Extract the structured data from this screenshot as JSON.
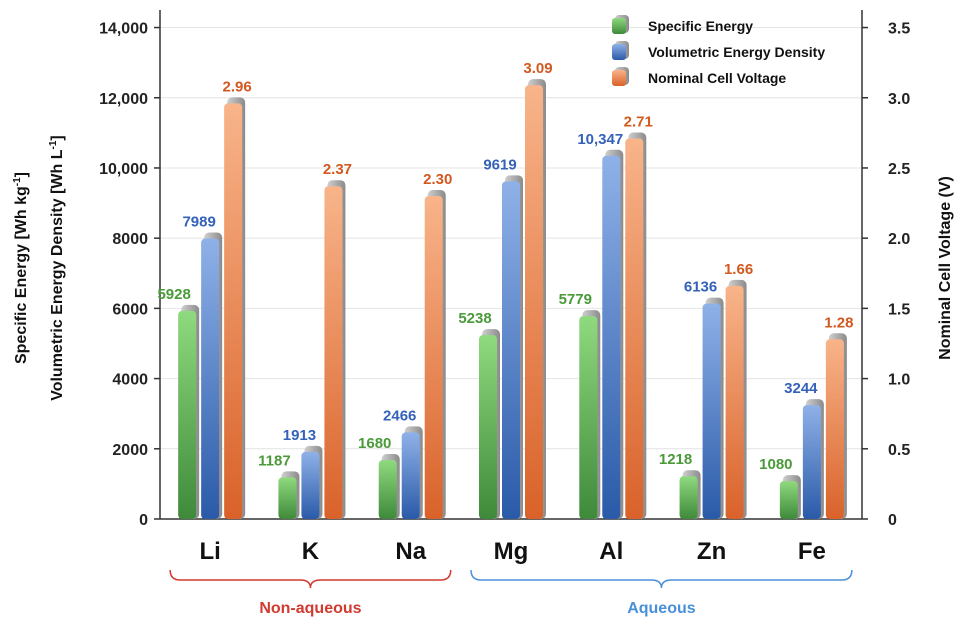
{
  "chart_data": {
    "type": "bar",
    "categories": [
      "Li",
      "K",
      "Na",
      "Mg",
      "Al",
      "Zn",
      "Fe"
    ],
    "series": [
      {
        "name": "Specific Energy",
        "axis": "left",
        "color": "#5cb85c",
        "values": [
          5928,
          1187,
          1680,
          5238,
          5779,
          1218,
          1080
        ],
        "labels": [
          "5928",
          "1187",
          "1680",
          "5238",
          "5779",
          "1218",
          "1080"
        ]
      },
      {
        "name": "Volumetric Energy Density",
        "axis": "left",
        "color": "#3a6fc4",
        "values": [
          7989,
          1913,
          2466,
          9619,
          10347,
          6136,
          3244
        ],
        "labels": [
          "7989",
          "1913",
          "2466",
          "9619",
          "10,347",
          "6136",
          "3244"
        ]
      },
      {
        "name": "Nominal Cell Voltage",
        "axis": "right",
        "color": "#e8733a",
        "values": [
          2.96,
          2.37,
          2.3,
          3.09,
          2.71,
          1.66,
          1.28
        ],
        "labels": [
          "2.96",
          "2.37",
          "2.30",
          "3.09",
          "2.71",
          "1.66",
          "1.28"
        ]
      }
    ],
    "left_axis": {
      "title_line1": "Specific Energy [Wh kg",
      "title_line1_sup": "-1",
      "title_line1_end": "]",
      "title_line2": "Volumetric Energy Density [Wh L",
      "title_line2_sup": "-1",
      "title_line2_end": "]",
      "ylim": [
        0,
        14500
      ],
      "ticks": [
        0,
        2000,
        4000,
        6000,
        8000,
        10000,
        12000,
        14000
      ],
      "tick_labels": [
        "0",
        "2000",
        "4000",
        "6000",
        "8000",
        "10,000",
        "12,000",
        "14,000"
      ]
    },
    "right_axis": {
      "title": "Nominal Cell Voltage (V)",
      "ylim": [
        0,
        3.625
      ],
      "ticks": [
        0,
        0.5,
        1.0,
        1.5,
        2.0,
        2.5,
        3.0,
        3.5
      ],
      "tick_labels": [
        "0",
        "0.5",
        "1.0",
        "1.5",
        "2.0",
        "2.5",
        "3.0",
        "3.5"
      ]
    },
    "groups": [
      {
        "label": "Non-aqueous",
        "color": "#d03a2f",
        "categories": [
          "Li",
          "K",
          "Na"
        ]
      },
      {
        "label": "Aqueous",
        "color": "#4a90d9",
        "categories": [
          "Mg",
          "Al",
          "Zn",
          "Fe"
        ]
      }
    ],
    "legend_position": "top-right",
    "grid": true
  }
}
